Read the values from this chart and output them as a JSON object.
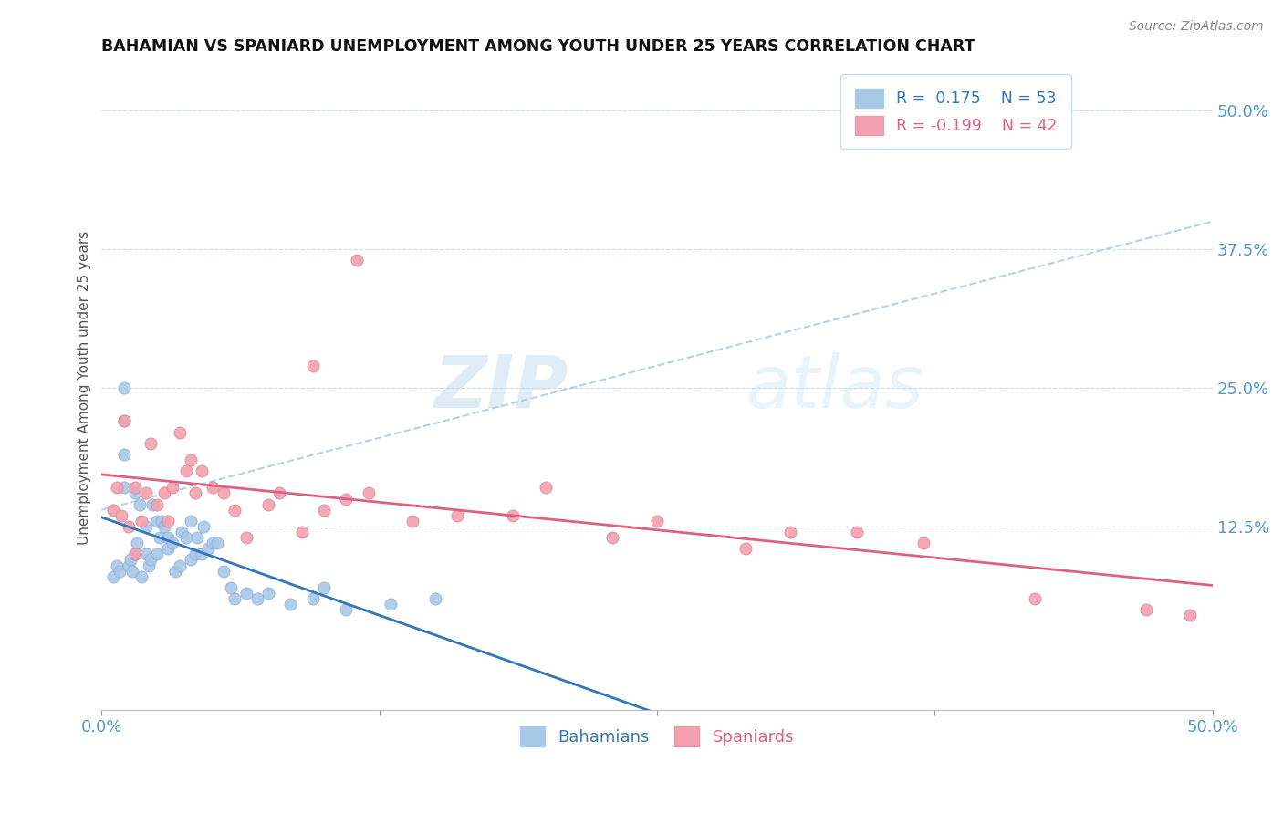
{
  "title": "BAHAMIAN VS SPANIARD UNEMPLOYMENT AMONG YOUTH UNDER 25 YEARS CORRELATION CHART",
  "source": "Source: ZipAtlas.com",
  "ylabel": "Unemployment Among Youth under 25 years",
  "xlim": [
    0,
    0.5
  ],
  "ylim": [
    -0.04,
    0.54
  ],
  "yticks_right": [
    0.125,
    0.25,
    0.375,
    0.5
  ],
  "ytick_right_labels": [
    "12.5%",
    "25.0%",
    "37.5%",
    "50.0%"
  ],
  "bahamian_color": "#a8c8e8",
  "spaniard_color": "#f4a0b0",
  "bahamian_line_color": "#3377bb",
  "spaniard_line_color": "#e06080",
  "diagonal_color": "#b0cce8",
  "watermark_zip": "ZIP",
  "watermark_atlas": "atlas",
  "legend_R_bahamian": "R =  0.175",
  "legend_N_bahamian": "N = 53",
  "legend_R_spaniard": "R = -0.199",
  "legend_N_spaniard": "N = 42",
  "bahamian_x": [
    0.005,
    0.007,
    0.008,
    0.01,
    0.01,
    0.01,
    0.01,
    0.012,
    0.013,
    0.014,
    0.015,
    0.015,
    0.016,
    0.017,
    0.018,
    0.02,
    0.02,
    0.021,
    0.022,
    0.023,
    0.025,
    0.025,
    0.026,
    0.027,
    0.028,
    0.03,
    0.03,
    0.032,
    0.033,
    0.035,
    0.036,
    0.038,
    0.04,
    0.04,
    0.042,
    0.043,
    0.045,
    0.046,
    0.048,
    0.05,
    0.052,
    0.055,
    0.058,
    0.06,
    0.065,
    0.07,
    0.075,
    0.085,
    0.095,
    0.1,
    0.11,
    0.13,
    0.15
  ],
  "bahamian_y": [
    0.08,
    0.09,
    0.085,
    0.16,
    0.19,
    0.22,
    0.25,
    0.09,
    0.095,
    0.085,
    0.155,
    0.1,
    0.11,
    0.145,
    0.08,
    0.125,
    0.1,
    0.09,
    0.095,
    0.145,
    0.13,
    0.1,
    0.115,
    0.13,
    0.125,
    0.105,
    0.115,
    0.11,
    0.085,
    0.09,
    0.12,
    0.115,
    0.095,
    0.13,
    0.1,
    0.115,
    0.1,
    0.125,
    0.105,
    0.11,
    0.11,
    0.085,
    0.07,
    0.06,
    0.065,
    0.06,
    0.065,
    0.055,
    0.06,
    0.07,
    0.05,
    0.055,
    0.06
  ],
  "spaniard_x": [
    0.005,
    0.007,
    0.009,
    0.01,
    0.012,
    0.015,
    0.015,
    0.018,
    0.02,
    0.022,
    0.025,
    0.028,
    0.03,
    0.032,
    0.035,
    0.038,
    0.04,
    0.042,
    0.045,
    0.05,
    0.055,
    0.06,
    0.065,
    0.075,
    0.08,
    0.09,
    0.1,
    0.11,
    0.12,
    0.14,
    0.16,
    0.185,
    0.2,
    0.23,
    0.25,
    0.29,
    0.31,
    0.34,
    0.37,
    0.42,
    0.47,
    0.49
  ],
  "spaniard_y": [
    0.14,
    0.16,
    0.135,
    0.22,
    0.125,
    0.16,
    0.1,
    0.13,
    0.155,
    0.2,
    0.145,
    0.155,
    0.13,
    0.16,
    0.21,
    0.175,
    0.185,
    0.155,
    0.175,
    0.16,
    0.155,
    0.14,
    0.115,
    0.145,
    0.155,
    0.12,
    0.14,
    0.15,
    0.155,
    0.13,
    0.135,
    0.135,
    0.16,
    0.115,
    0.13,
    0.105,
    0.12,
    0.12,
    0.11,
    0.06,
    0.05,
    0.045
  ],
  "spaniard_outlier_x": [
    0.115
  ],
  "spaniard_outlier_y": [
    0.365
  ],
  "spaniard_y25_x": [
    0.095
  ],
  "spaniard_y25_y": [
    0.27
  ]
}
